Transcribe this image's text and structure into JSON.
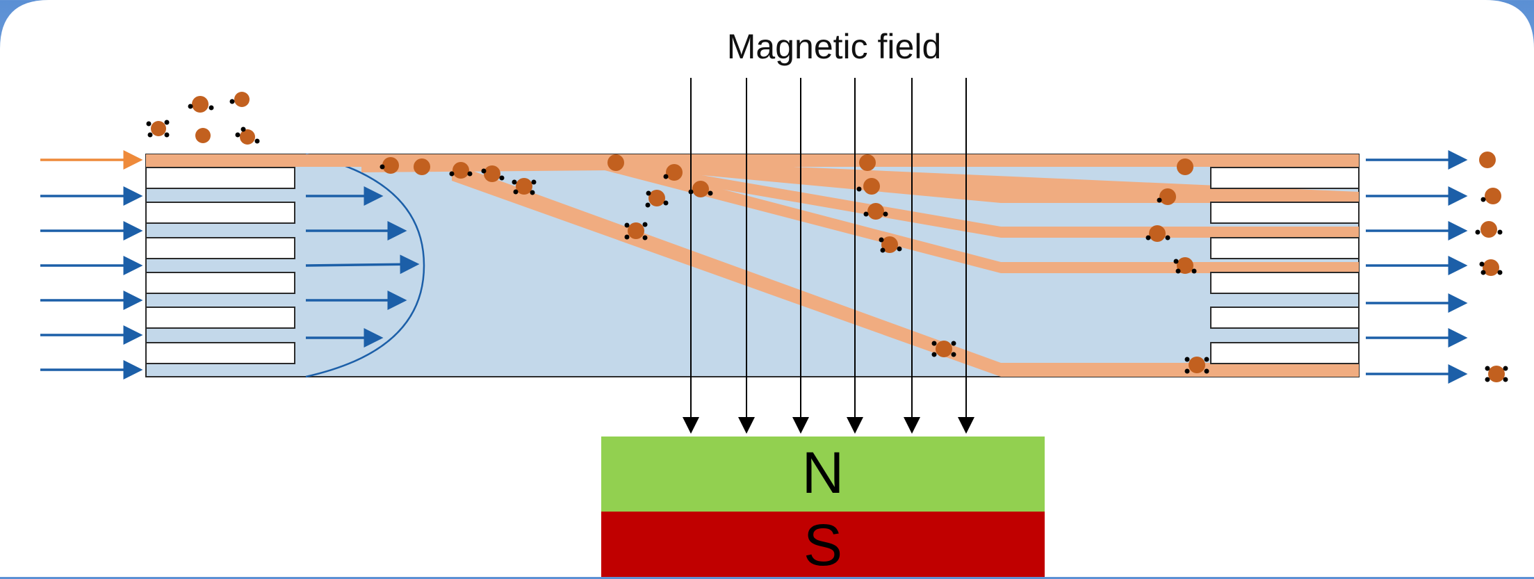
{
  "diagram": {
    "field_label": "Magnetic field",
    "pole_north": "N",
    "pole_south": "S"
  },
  "colors": {
    "channel_fill": "#c3d8ea",
    "stream_fill": "#f0ac80",
    "particle": "#c2601f",
    "flow_arrow": "#1c5fa8",
    "inlet_arrow": "#ee8a3a",
    "north": "#92d050",
    "south": "#c00000"
  }
}
